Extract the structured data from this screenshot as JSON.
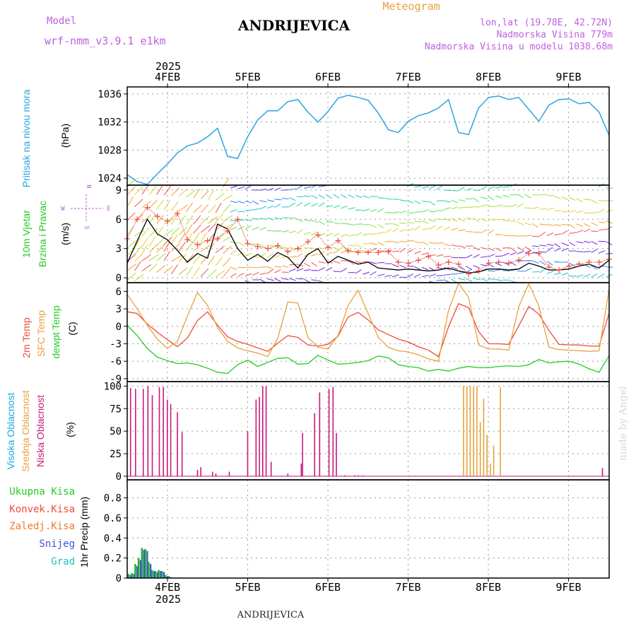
{
  "header": {
    "model_label": "Model",
    "model_name": "wrf-nmm_v3.9.1  e1km",
    "station": "ANDRIJEVICA",
    "meteogram": "Meteogram",
    "lonlat": "lon,lat (19.78E, 42.72N)",
    "altitude": "Nadmorska Visina 779m",
    "model_altitude": "Nadmorska Visina u modelu 1038.68m",
    "footer_station": "ANDRIJEVICA",
    "watermark": "made by Angel"
  },
  "colors": {
    "pressure": "#29a6e0",
    "temp": "#ef4a3a",
    "sfc_temp": "#e6a23c",
    "dewpoint": "#22cc22",
    "high_cloud": "#19a9e0",
    "mid_cloud": "#e6a23c",
    "low_cloud": "#c8197b",
    "precip_total": "#22b422",
    "precip_convective": "#ef4a3a",
    "precip_freezing": "#f07a2a",
    "snow": "#3c55d8",
    "graupel": "#20c0c0",
    "magenta": "#c060e0",
    "frame": "#000000"
  },
  "chart_data": [
    {
      "type": "line",
      "panel": "pressure",
      "ylabel_lines": [
        "Pritisak na nivou mora"
      ],
      "unit": "(hPa)",
      "ylim": [
        1023,
        1037
      ],
      "yticks": [
        1024,
        1028,
        1032,
        1036
      ],
      "x_start_label": "2025",
      "day_labels": [
        "4FEB",
        "5FEB",
        "6FEB",
        "7FEB",
        "8FEB",
        "9FEB"
      ],
      "x": [
        0,
        3,
        6,
        9,
        12,
        15,
        18,
        21,
        24,
        27,
        30,
        33,
        36,
        39,
        42,
        45,
        48,
        51,
        54,
        57,
        60,
        63,
        66,
        69,
        72,
        75,
        78,
        81,
        84,
        87,
        90,
        93,
        96,
        99,
        102,
        105,
        108,
        111,
        114,
        117,
        120,
        123,
        126,
        129,
        132,
        135,
        138,
        141,
        144
      ],
      "series": [
        {
          "values": [
            1024.5,
            1023.5,
            1023.1,
            1024.6,
            1026.0,
            1027.6,
            1028.6,
            1029.0,
            1029.9,
            1031.1,
            1027.1,
            1026.8,
            1029.9,
            1032.3,
            1033.6,
            1033.6,
            1034.9,
            1035.2,
            1033.4,
            1032.0,
            1033.5,
            1035.4,
            1035.8,
            1035.5,
            1035.1,
            1033.3,
            1030.9,
            1030.5,
            1032.1,
            1032.9,
            1033.3,
            1034.0,
            1035.2,
            1030.5,
            1030.2,
            1034.0,
            1035.5,
            1035.7,
            1035.2,
            1035.5,
            1033.8,
            1032.1,
            1034.4,
            1035.2,
            1035.3,
            1034.6,
            1034.8,
            1033.4,
            1030.1
          ]
        }
      ]
    },
    {
      "type": "line",
      "panel": "wind",
      "ylabel_lines": [
        "10m Vjetar",
        "Brzina i Pravac"
      ],
      "unit": "(m/s)",
      "ylim": [
        -0.5,
        9.5
      ],
      "yticks": [
        0,
        3,
        6,
        9
      ],
      "compass": [
        "N",
        "W",
        "E",
        "S"
      ],
      "x": [
        0,
        3,
        6,
        9,
        12,
        15,
        18,
        21,
        24,
        27,
        30,
        33,
        36,
        39,
        42,
        45,
        48,
        51,
        54,
        57,
        60,
        63,
        66,
        69,
        72,
        75,
        78,
        81,
        84,
        87,
        90,
        93,
        96,
        99,
        102,
        105,
        108,
        111,
        114,
        117,
        120,
        123,
        126,
        129,
        132,
        135,
        138,
        141,
        144
      ],
      "series": [
        {
          "name": "speed",
          "values": [
            1.5,
            3.8,
            6.0,
            4.5,
            3.9,
            2.8,
            1.6,
            2.5,
            2.0,
            5.5,
            5.0,
            3.0,
            1.8,
            2.4,
            1.7,
            2.6,
            2.1,
            1.0,
            2.4,
            3.0,
            1.5,
            2.2,
            1.8,
            1.4,
            1.6,
            1.0,
            0.9,
            0.8,
            0.9,
            0.8,
            0.7,
            0.8,
            1.0,
            0.7,
            0.5,
            0.6,
            0.9,
            0.9,
            0.8,
            0.9,
            1.5,
            1.2,
            0.8,
            0.8,
            0.9,
            1.2,
            1.4,
            1.0,
            1.8
          ]
        },
        {
          "name": "gust",
          "values": [
            4.0,
            6.0,
            7.2,
            6.3,
            5.8,
            6.6,
            3.9,
            3.4,
            3.8,
            4.0,
            4.8,
            6.0,
            3.5,
            3.2,
            3.0,
            3.3,
            2.7,
            3.0,
            3.7,
            4.4,
            3.1,
            3.8,
            2.8,
            2.6,
            2.6,
            2.6,
            2.7,
            1.6,
            1.5,
            1.8,
            2.2,
            1.3,
            1.6,
            1.4,
            0.4,
            0.7,
            1.5,
            1.6,
            1.5,
            1.8,
            2.5,
            2.5,
            1.1,
            0.8,
            1.2,
            1.4,
            1.6,
            1.6,
            1.9
          ]
        }
      ]
    },
    {
      "type": "line",
      "panel": "temperature",
      "ylabel_lines": [
        "2m Temp",
        "SFC Temp",
        "dewpt Temp"
      ],
      "unit": "(C)",
      "ylim": [
        -9.5,
        7.5
      ],
      "yticks": [
        -9,
        -6,
        -3,
        0,
        3,
        6
      ],
      "x": [
        0,
        3,
        6,
        9,
        12,
        15,
        18,
        21,
        24,
        27,
        30,
        33,
        36,
        39,
        42,
        45,
        48,
        51,
        54,
        57,
        60,
        63,
        66,
        69,
        72,
        75,
        78,
        81,
        84,
        87,
        90,
        93,
        96,
        99,
        102,
        105,
        108,
        111,
        114,
        117,
        120,
        123,
        126,
        129,
        132,
        135,
        138,
        141,
        144
      ],
      "series": [
        {
          "name": "2m Temp",
          "values": [
            2.5,
            2.2,
            0.4,
            -1.0,
            -2.3,
            -3.5,
            -2.0,
            1.0,
            2.5,
            0.2,
            -1.8,
            -2.6,
            -3.1,
            -3.7,
            -4.3,
            -2.9,
            -1.6,
            -1.9,
            -3.2,
            -3.4,
            -3.1,
            -1.7,
            1.6,
            2.4,
            1.1,
            -0.6,
            -1.4,
            -2.2,
            -2.7,
            -3.5,
            -4.1,
            -5.2,
            -0.1,
            3.9,
            3.2,
            -0.9,
            -3.0,
            -3.0,
            -3.1,
            0.1,
            3.4,
            2.1,
            -0.7,
            -3.1,
            -3.2,
            -3.2,
            -3.4,
            -3.4,
            2.3
          ]
        },
        {
          "name": "SFC Temp",
          "values": [
            5.5,
            3.0,
            0.2,
            -2.2,
            -3.8,
            -2.6,
            1.8,
            5.8,
            3.6,
            -0.2,
            -2.6,
            -3.7,
            -4.2,
            -4.6,
            -5.2,
            -2.0,
            4.2,
            4.0,
            -1.9,
            -3.6,
            -3.9,
            -1.6,
            3.6,
            6.2,
            2.2,
            -1.9,
            -3.6,
            -4.2,
            -4.4,
            -4.9,
            -5.6,
            -6.0,
            2.7,
            7.4,
            5.0,
            -3.2,
            -3.9,
            -3.9,
            -4.1,
            3.4,
            7.3,
            3.5,
            -3.6,
            -4.0,
            -4.1,
            -4.2,
            -4.3,
            -4.2,
            6.5
          ]
        },
        {
          "name": "dewpt Temp",
          "values": [
            0.2,
            -1.6,
            -3.8,
            -5.3,
            -5.9,
            -6.4,
            -6.3,
            -6.6,
            -7.2,
            -7.9,
            -8.1,
            -6.6,
            -5.8,
            -6.9,
            -6.2,
            -5.5,
            -5.4,
            -6.5,
            -6.4,
            -5.0,
            -5.8,
            -6.5,
            -6.4,
            -6.2,
            -5.9,
            -5.1,
            -5.4,
            -6.6,
            -6.9,
            -7.1,
            -7.7,
            -7.4,
            -7.7,
            -7.2,
            -6.9,
            -7.1,
            -7.1,
            -6.9,
            -6.8,
            -6.9,
            -6.6,
            -5.7,
            -6.3,
            -6.1,
            -6.0,
            -6.5,
            -7.3,
            -7.9,
            -5.0
          ]
        }
      ]
    },
    {
      "type": "bar",
      "panel": "clouds",
      "ylabel_lines": [
        "Visoka Oblacnost",
        "Srednja Oblacnost",
        "Niska Oblacnost"
      ],
      "unit": "(%)",
      "ylim": [
        -4,
        105
      ],
      "yticks": [
        0,
        25,
        50,
        75,
        100
      ],
      "series": [
        {
          "name": "Niska Oblacnost",
          "x": [
            1,
            2.5,
            4.8,
            6.2,
            7.5,
            9.6,
            10.8,
            12,
            13,
            15,
            16.4,
            21,
            22,
            25.5,
            26.5,
            30.5,
            36,
            38.5,
            39.5,
            40.5,
            41.5,
            43,
            48,
            52,
            52.4,
            56,
            57.5,
            60.3,
            61.5,
            62.5,
            65,
            68,
            69,
            70.5,
            142
          ],
          "values": [
            98,
            97,
            97,
            100,
            90,
            99,
            99,
            85,
            80,
            71,
            49,
            7,
            10,
            5,
            3,
            5,
            50,
            85,
            88,
            100,
            100,
            16,
            3,
            14,
            48,
            70,
            93,
            97,
            99,
            48,
            1,
            1,
            1,
            1,
            9
          ]
        },
        {
          "name": "Srednja Oblacnost",
          "x": [
            100.5,
            101.5,
            102.5,
            103.5,
            104.5,
            105.5,
            106.5,
            107.5,
            108.5,
            109.5,
            111.5
          ],
          "values": [
            100,
            100,
            100,
            99,
            100,
            60,
            86,
            46,
            14,
            34,
            99
          ]
        },
        {
          "name": "Visoka Oblacnost",
          "x": [],
          "values": []
        }
      ]
    },
    {
      "type": "bar",
      "panel": "precip",
      "ylabel_lines": [
        "Ukupna Kisa",
        "Konvek.Kisa",
        "Zaledj.Kisa",
        "Snijeg",
        "Grad"
      ],
      "unit": "1hr Precip (mm)",
      "ylim": [
        0,
        0.98
      ],
      "yticks": [
        0,
        0.2,
        0.4,
        0.6,
        0.8
      ],
      "bottom_day_labels": [
        "4FEB",
        "5FEB",
        "6FEB",
        "7FEB",
        "8FEB",
        "9FEB"
      ],
      "x_end_label": "2025",
      "series": [
        {
          "name": "Ukupna Kisa",
          "x": [
            0.6,
            1.6,
            2.6,
            3.6,
            4.6,
            5.6,
            6.6,
            7.6,
            8.6,
            9.6,
            10.6,
            11.6,
            12.6
          ],
          "values": [
            0.04,
            0.05,
            0.14,
            0.2,
            0.3,
            0.29,
            0.16,
            0.08,
            0.07,
            0.08,
            0.07,
            0.03,
            0.02
          ]
        },
        {
          "name": "Snijeg",
          "x": [
            0.6,
            1.6,
            2.6,
            3.6,
            4.6,
            5.6,
            6.6,
            7.6,
            8.6,
            9.6,
            10.6,
            11.6,
            12.6
          ],
          "values": [
            0.03,
            0.04,
            0.12,
            0.18,
            0.28,
            0.27,
            0.14,
            0.07,
            0.06,
            0.07,
            0.06,
            0.02,
            0.01
          ]
        }
      ]
    }
  ]
}
